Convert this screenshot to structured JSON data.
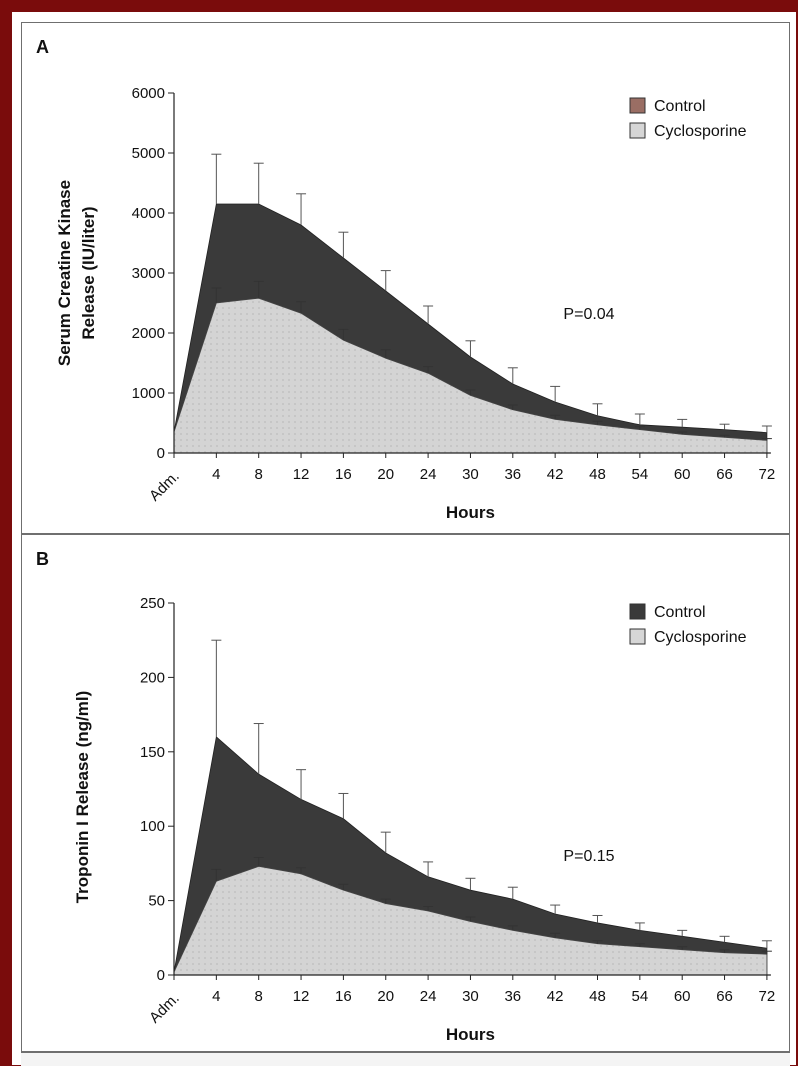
{
  "chart_data": [
    {
      "panel": "A",
      "type": "area",
      "xlabel": "Hours",
      "ylabel_lines": [
        "Serum Creatine Kinase",
        "Release (IU/liter)"
      ],
      "categories": [
        "Adm.",
        "4",
        "8",
        "12",
        "16",
        "20",
        "24",
        "30",
        "36",
        "42",
        "48",
        "54",
        "60",
        "66",
        "72"
      ],
      "ylim": [
        0,
        6000
      ],
      "yticks": [
        0,
        1000,
        2000,
        3000,
        4000,
        5000,
        6000
      ],
      "annotation": "P=0.04",
      "legend_position": "top-right",
      "series": [
        {
          "name": "Control",
          "color": "#3a3a3a",
          "legend_color": "#9a6e64",
          "values": [
            350,
            4150,
            4150,
            3800,
            3250,
            2700,
            2150,
            1600,
            1150,
            850,
            620,
            470,
            430,
            390,
            340
          ],
          "error": [
            null,
            830,
            680,
            520,
            430,
            340,
            300,
            270,
            270,
            260,
            200,
            180,
            130,
            90,
            110
          ]
        },
        {
          "name": "Cyclosporine",
          "color": "#d6d6d6",
          "legend_color": "#d6d6d6",
          "values": [
            350,
            2500,
            2580,
            2330,
            1880,
            1580,
            1330,
            960,
            720,
            560,
            470,
            390,
            310,
            260,
            210
          ],
          "error": [
            null,
            250,
            280,
            190,
            180,
            140,
            110,
            90,
            80,
            70,
            60,
            50,
            40,
            35,
            30
          ]
        }
      ]
    },
    {
      "panel": "B",
      "type": "area",
      "xlabel": "Hours",
      "ylabel_lines": [
        "Troponin I Release (ng/ml)"
      ],
      "categories": [
        "Adm.",
        "4",
        "8",
        "12",
        "16",
        "20",
        "24",
        "30",
        "36",
        "42",
        "48",
        "54",
        "60",
        "66",
        "72"
      ],
      "ylim": [
        0,
        250
      ],
      "yticks": [
        0,
        50,
        100,
        150,
        200,
        250
      ],
      "annotation": "P=0.15",
      "legend_position": "top-right",
      "series": [
        {
          "name": "Control",
          "color": "#3a3a3a",
          "legend_color": "#3a3a3a",
          "values": [
            2,
            160,
            135,
            118,
            105,
            82,
            66,
            57,
            51,
            41,
            35,
            30,
            26,
            22,
            18
          ],
          "error": [
            null,
            65,
            34,
            20,
            17,
            14,
            10,
            8,
            8,
            6,
            5,
            5,
            4,
            4,
            5
          ]
        },
        {
          "name": "Cyclosporine",
          "color": "#d6d6d6",
          "legend_color": "#d6d6d6",
          "values": [
            2,
            63,
            73,
            68,
            57,
            48,
            43,
            36,
            30,
            25,
            21,
            19,
            17,
            15,
            14
          ],
          "error": [
            null,
            8,
            6,
            4,
            4,
            3,
            3,
            3,
            3,
            3,
            2,
            2,
            2,
            2,
            2
          ]
        }
      ]
    }
  ]
}
